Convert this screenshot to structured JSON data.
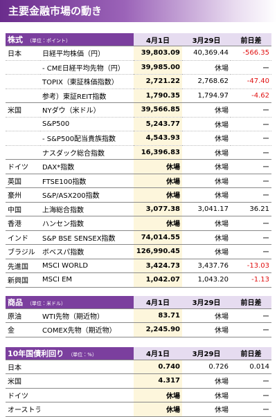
{
  "header": {
    "title": "主要金融市場の動き"
  },
  "sections": [
    {
      "title": "株式",
      "unit": "（単位：ポイント）",
      "columns": [
        "4月1日",
        "3月29日",
        "前日差"
      ],
      "rows": [
        [
          "日本",
          "日経平均株価（円）",
          "39,803.09",
          "40,369.44",
          "-566.35"
        ],
        [
          null,
          "- CME日経平均先物（円）",
          "39,985.00",
          "休場",
          "ー"
        ],
        [
          null,
          "TOPIX（東証株価指数）",
          "2,721.22",
          "2,768.62",
          "-47.40"
        ],
        [
          null,
          "参考）東証REIT指数",
          "1,790.35",
          "1,794.97",
          "-4.62"
        ],
        [
          "米国",
          "NYダウ（米ドル）",
          "39,566.85",
          "休場",
          "ー"
        ],
        [
          null,
          "S&P500",
          "5,243.77",
          "休場",
          "ー"
        ],
        [
          null,
          "- S&P500配当貴族指数",
          "4,543.93",
          "休場",
          "ー"
        ],
        [
          null,
          "ナスダック総合指数",
          "16,396.83",
          "休場",
          "ー"
        ],
        [
          "ドイツ",
          "DAX*指数",
          "休場",
          "休場",
          "ー"
        ],
        [
          "英国",
          "FTSE100指数",
          "休場",
          "休場",
          "ー"
        ],
        [
          "豪州",
          "S&P/ASX200指数",
          "休場",
          "休場",
          "ー"
        ],
        [
          "中国",
          "上海総合指数",
          "3,077.38",
          "3,041.17",
          "36.21"
        ],
        [
          "香港",
          "ハンセン指数",
          "休場",
          "休場",
          "ー"
        ],
        [
          "インド",
          "S&P BSE SENSEX指数",
          "74,014.55",
          "休場",
          "ー"
        ],
        [
          "ブラジル",
          "ボベスパ指数",
          "126,990.45",
          "休場",
          "ー"
        ],
        [
          "先進国",
          "MSCI WORLD",
          "3,424.73",
          "3,437.76",
          "-13.03"
        ],
        [
          "新興国",
          "MSCI EM",
          "1,042.07",
          "1,043.20",
          "-1.13"
        ]
      ]
    },
    {
      "title": "商品",
      "unit": "（単位：米ドル）",
      "columns": [
        "4月1日",
        "3月29日",
        "前日差"
      ],
      "rows": [
        [
          "原油",
          "WTI先物（期近物）",
          "83.71",
          "休場",
          "ー"
        ],
        [
          "金",
          "COMEX先物（期近物）",
          "2,245.90",
          "休場",
          "ー"
        ]
      ]
    },
    {
      "title": "10年国債利回り",
      "unit": "（単位：%）",
      "columns": [
        "4月1日",
        "3月29日",
        "前日差"
      ],
      "rows": [
        [
          "日本",
          null,
          "0.740",
          "0.726",
          "0.014"
        ],
        [
          "米国",
          null,
          "4.317",
          "休場",
          "ー"
        ],
        [
          "ドイツ",
          null,
          "休場",
          "休場",
          "ー"
        ],
        [
          "オーストラリア",
          null,
          "休場",
          "休場",
          "ー"
        ]
      ]
    }
  ]
}
